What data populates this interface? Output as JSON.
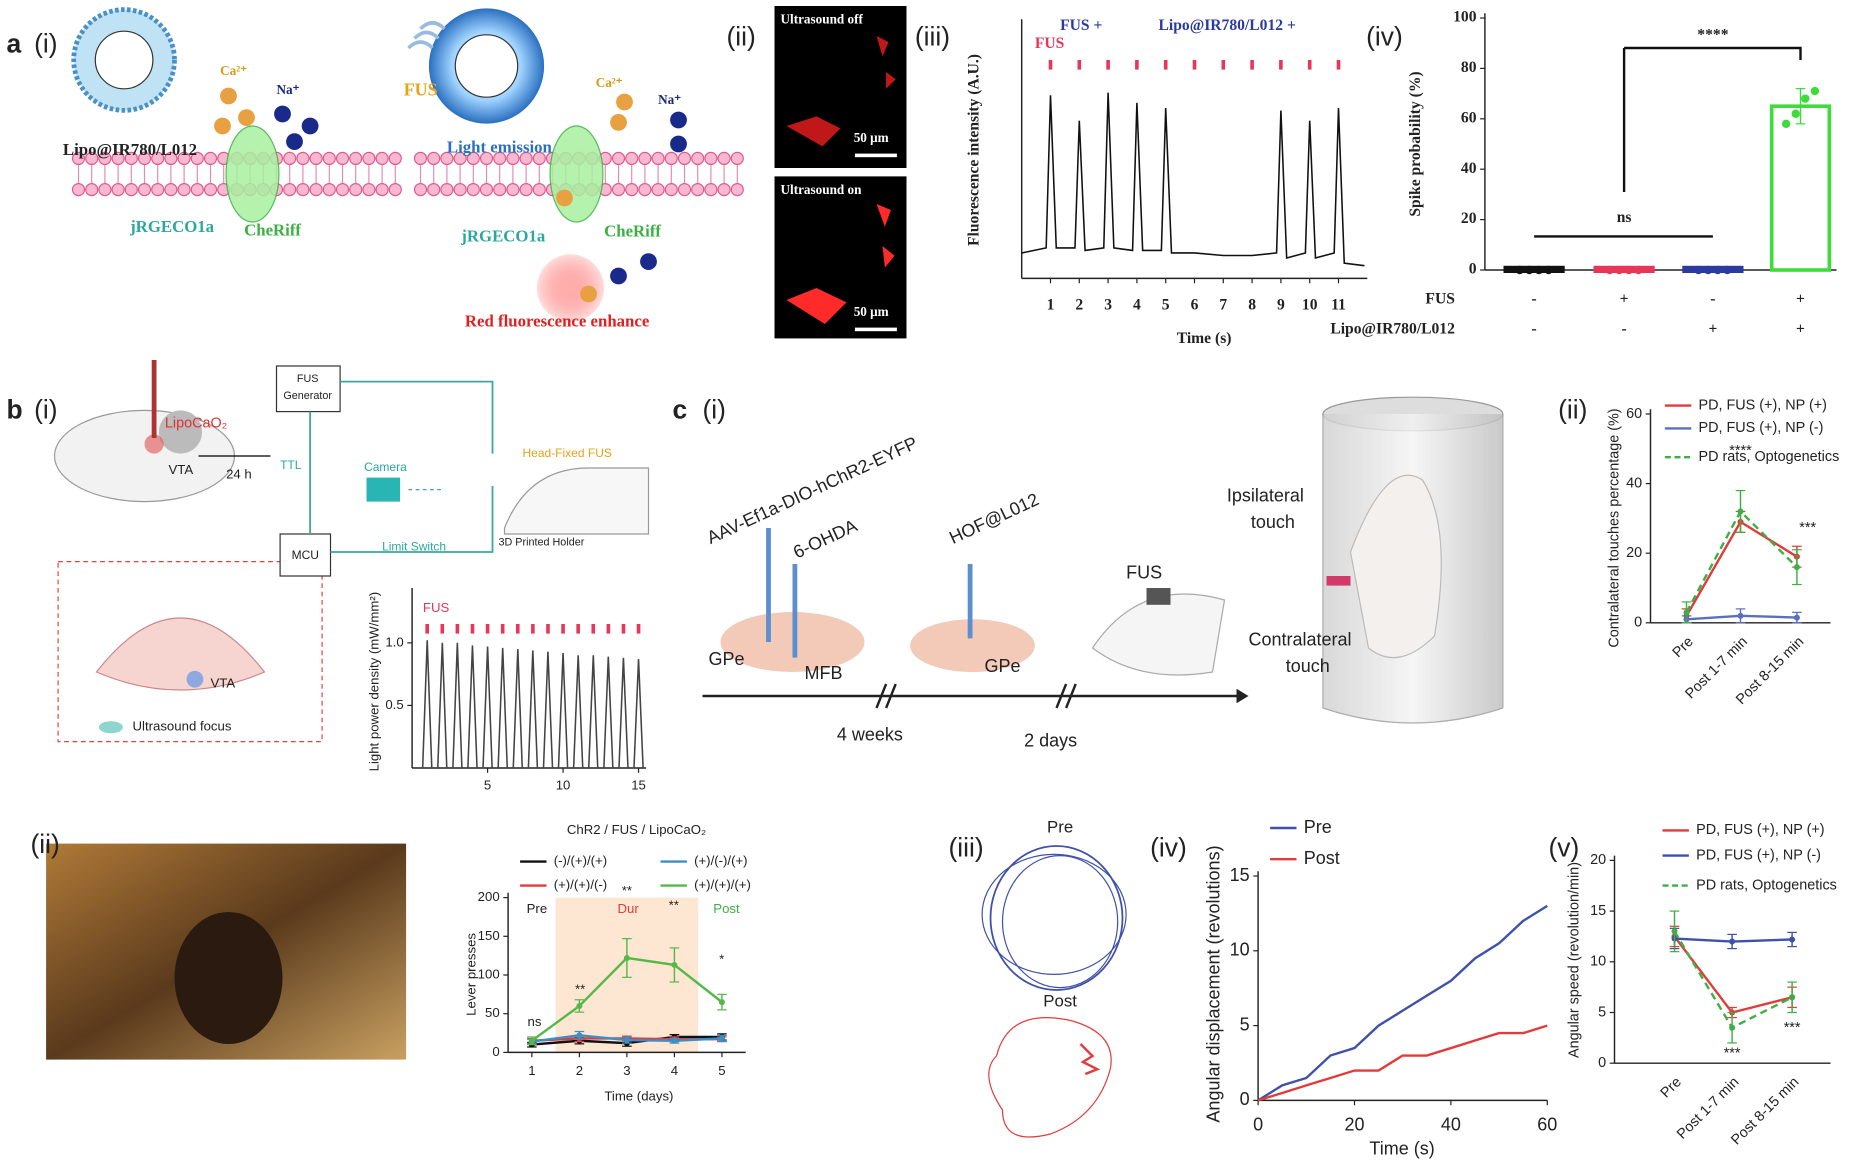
{
  "figure": {
    "panel_labels": [
      "a",
      "(i)",
      "(ii)",
      "(iii)",
      "(iv)",
      "b",
      "(i)",
      "c",
      "(i)",
      "(ii)",
      "(ii)",
      "(iii)",
      "(iv)",
      "(v)"
    ],
    "diagram_texts": [
      "Ca²⁺",
      "Na⁺",
      "Lipo@IR780/L012",
      "jRGECO1a",
      "CheRiff",
      "FUS",
      "Ca²⁺",
      "Na⁺",
      "Light emission",
      "jRGECO1a",
      "CheRiff",
      "Red fluorescence enhance",
      "Ultrasound off",
      "50 μm",
      "Ultrasound on",
      "50 μm",
      "LipoCaO₂",
      "VTA",
      "24 h",
      "FUS",
      "Generator",
      "TTL",
      "Camera",
      "Head-Fixed FUS",
      "MCU",
      "Limit Switch",
      "3D Printed Holder",
      "VTA",
      "Ultrasound focus",
      "AAV-Ef1a-DIO-hChR2-EYFP",
      "6-OHDA",
      "HOF@L012",
      "GPe",
      "MFB",
      "GPe",
      "FUS",
      "4 weeks",
      "2 days",
      "Ipsilateral",
      "touch",
      "Contralateral",
      "touch",
      "Pre",
      "Post"
    ]
  },
  "chart_data": [
    {
      "type": "line",
      "y_label": "Fluorescence intensity (A.U.)",
      "x_label": "Time (s)",
      "color": "#111111",
      "annotations": [
        "FUS  +",
        "Lipo@IR780/L012  +",
        "FUS"
      ],
      "stimuli": [
        1,
        2,
        3,
        4,
        5,
        6,
        7,
        8,
        9,
        10,
        11
      ],
      "stimulus_color": "#e8365a",
      "xlim": [
        0,
        12
      ],
      "xticks": [
        1,
        2,
        3,
        4,
        5,
        6,
        7,
        8,
        9,
        10,
        11
      ],
      "ylim": [
        0,
        1
      ],
      "x": [
        0,
        0.85,
        1,
        1.2,
        1.85,
        2,
        2.2,
        2.85,
        3,
        3.2,
        3.85,
        4,
        4.2,
        4.85,
        5,
        5.2,
        6,
        7,
        8,
        8.85,
        9,
        9.2,
        9.85,
        10,
        10.2,
        10.85,
        11,
        11.2,
        11.9
      ],
      "values": [
        0.1,
        0.12,
        0.72,
        0.12,
        0.12,
        0.62,
        0.11,
        0.12,
        0.73,
        0.12,
        0.11,
        0.69,
        0.11,
        0.11,
        0.67,
        0.1,
        0.1,
        0.09,
        0.09,
        0.1,
        0.66,
        0.08,
        0.1,
        0.62,
        0.08,
        0.1,
        0.67,
        0.06,
        0.05
      ]
    },
    {
      "type": "bar",
      "y_label": "Spike probability (%)",
      "annotations": [
        "ns",
        "****"
      ],
      "values": [
        0,
        0,
        0,
        65
      ],
      "errors": [
        0,
        0,
        0,
        7
      ],
      "colors": [
        "#111111",
        "#e8365a",
        "#2b3a9e",
        "#3ddc3a"
      ],
      "points": [
        [
          0,
          0,
          0,
          0
        ],
        [
          0,
          0,
          0,
          0
        ],
        [
          0,
          0,
          0,
          0
        ],
        [
          58,
          62,
          68,
          71
        ]
      ],
      "rows": [
        {
          "label": "FUS",
          "values": [
            "-",
            "+",
            "-",
            "+"
          ]
        },
        {
          "label": "Lipo@IR780/L012",
          "values": [
            "-",
            "-",
            "+",
            "+"
          ]
        }
      ],
      "ylim": [
        0,
        100
      ],
      "yticks": [
        0,
        20,
        40,
        60,
        80,
        100
      ]
    },
    {
      "type": "line",
      "y_label": "Light power density (mW/mm²)",
      "color": "#444444",
      "annotations": [
        "FUS"
      ],
      "stimuli": [
        1,
        2,
        3,
        4,
        5,
        6,
        7,
        8,
        9,
        10,
        11,
        12,
        13,
        14,
        15
      ],
      "stimulus_color": "#e8365a",
      "xlim": [
        0,
        15.5
      ],
      "xticks": [
        5,
        10,
        15
      ],
      "ylim": [
        0,
        1.4
      ],
      "yticks": [
        0.5,
        {
          "value": 1,
          "label": "1.0"
        }
      ],
      "x": [
        0.7,
        1,
        1.3,
        1.7,
        2,
        2.3,
        2.7,
        3,
        3.3,
        3.7,
        4,
        4.3,
        4.7,
        5,
        5.3,
        5.7,
        6,
        6.3,
        6.7,
        7,
        7.3,
        7.7,
        8,
        8.3,
        8.7,
        9,
        9.3,
        9.7,
        10,
        10.3,
        10.7,
        11,
        11.3,
        11.7,
        12,
        12.3,
        12.7,
        13,
        13.3,
        13.7,
        14,
        14.3,
        14.7,
        15,
        15.3
      ],
      "values": [
        0,
        1.02,
        0,
        0,
        1,
        0,
        0,
        1,
        0,
        0,
        0.98,
        0,
        0,
        0.97,
        0,
        0,
        0.96,
        0,
        0,
        0.95,
        0,
        0,
        0.94,
        0,
        0,
        0.93,
        0,
        0,
        0.92,
        0,
        0,
        0.9,
        0,
        0,
        0.9,
        0,
        0,
        0.89,
        0,
        0,
        0.88,
        0,
        0,
        0.87,
        0
      ]
    },
    {
      "type": "line",
      "title": "ChR2 / FUS / LipoCaO₂",
      "x_label": "Time (days)",
      "y_label": "Lever presses",
      "annotations": [
        "Pre",
        "Dur",
        "Post",
        "ns",
        "**",
        "**",
        "**",
        "*"
      ],
      "shade": [
        1.5,
        4.5
      ],
      "xlim": [
        0.5,
        5.5
      ],
      "xticks": [
        1,
        2,
        3,
        4,
        5
      ],
      "ylim": [
        0,
        200
      ],
      "yticks": [
        0,
        50,
        100,
        150,
        200
      ],
      "x": [
        1,
        2,
        3,
        4,
        5
      ],
      "series": [
        {
          "name": "(-)/(+)/(+)",
          "color": "#111111",
          "values": [
            10,
            15,
            12,
            20,
            20
          ],
          "errors": [
            3,
            4,
            4,
            3,
            4
          ]
        },
        {
          "name": "(+)/(+)/(-)",
          "color": "#e03c3c",
          "values": [
            15,
            18,
            18,
            17,
            17
          ],
          "errors": [
            3,
            4,
            3,
            3,
            3
          ]
        },
        {
          "name": "(+)/(-)/(+)",
          "color": "#3a8fc4",
          "values": [
            14,
            22,
            16,
            15,
            18
          ],
          "errors": [
            3,
            5,
            4,
            3,
            4
          ]
        },
        {
          "name": "(+)/(+)/(+)",
          "color": "#57b84a",
          "values": [
            15,
            60,
            122,
            113,
            65
          ],
          "errors": [
            5,
            8,
            25,
            22,
            10
          ]
        }
      ]
    },
    {
      "type": "line",
      "y_label": "Contralateral touches percentage (%)",
      "annotations": [
        "****",
        "***"
      ],
      "categories": [
        "Pre",
        "Post 1-7 min",
        "Post 8-15 min"
      ],
      "ylim": [
        0,
        60
      ],
      "yticks": [
        0,
        20,
        40,
        60
      ],
      "series": [
        {
          "name": "PD, FUS (+), NP (+)",
          "color": "#e03c3c",
          "values": [
            2,
            29,
            19
          ],
          "errors": [
            2,
            3,
            3
          ]
        },
        {
          "name": "PD, FUS (+), NP (-)",
          "color": "#5a6fc0",
          "values": [
            1,
            2,
            1.5
          ],
          "errors": [
            1,
            2,
            1.5
          ]
        },
        {
          "name": "PD rats, Optogenetics",
          "color": "#3cb043",
          "dashed": true,
          "values": [
            3,
            32,
            16
          ],
          "errors": [
            3,
            6,
            5
          ]
        }
      ]
    },
    {
      "type": "line",
      "x_label": "Time (s)",
      "y_label": "Angular displacement (revolutions)",
      "xlim": [
        0,
        60
      ],
      "xticks": [
        0,
        20,
        40,
        60
      ],
      "ylim": [
        0,
        15
      ],
      "yticks": [
        0,
        5,
        10,
        15
      ],
      "x": [
        0,
        5,
        10,
        15,
        20,
        25,
        30,
        35,
        40,
        45,
        50,
        55,
        60
      ],
      "series": [
        {
          "name": "Pre",
          "color": "#3f51a8",
          "values": [
            0,
            1,
            1.5,
            3,
            3.5,
            5,
            6,
            7,
            8,
            9.5,
            10.5,
            12,
            13
          ]
        },
        {
          "name": "Post",
          "color": "#e03c3c",
          "values": [
            0,
            0.5,
            1,
            1.5,
            2,
            2,
            3,
            3,
            3.5,
            4,
            4.5,
            4.5,
            5
          ]
        }
      ]
    },
    {
      "type": "line",
      "y_label": "Angular speed (revolution/min)",
      "annotations": [
        "***",
        "***"
      ],
      "categories": [
        "Pre",
        "Post 1-7 min",
        "Post 8-15 min"
      ],
      "ylim": [
        0,
        20
      ],
      "yticks": [
        0,
        5,
        10,
        15,
        20
      ],
      "series": [
        {
          "name": "PD, FUS (+), NP (+)",
          "color": "#e03c3c",
          "values": [
            12.5,
            5,
            6.5
          ],
          "errors": [
            1,
            0.5,
            1
          ]
        },
        {
          "name": "PD, FUS (+), NP (-)",
          "color": "#3f51a8",
          "values": [
            12.3,
            12,
            12.2
          ],
          "errors": [
            1,
            0.7,
            0.7
          ]
        },
        {
          "name": "PD rats, Optogenetics",
          "color": "#3cb043",
          "dashed": true,
          "values": [
            13,
            3.5,
            6.5
          ],
          "errors": [
            2,
            1.5,
            1.5
          ]
        }
      ]
    }
  ]
}
